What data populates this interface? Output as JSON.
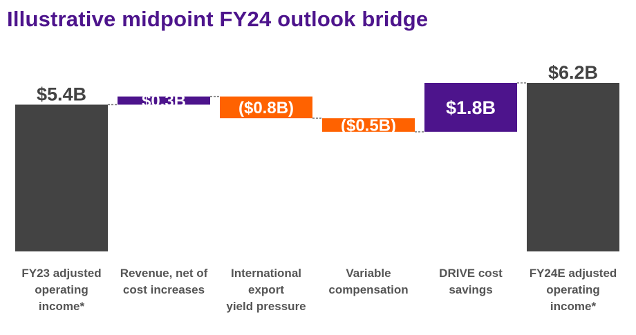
{
  "title": "Illustrative midpoint FY24 outlook bridge",
  "colors": {
    "total": "#434343",
    "increase": "#4d148c",
    "decrease": "#ff6200",
    "title": "#4d148c",
    "category_text": "#555555"
  },
  "chart_data": {
    "type": "waterfall",
    "title": "Illustrative midpoint FY24 outlook bridge",
    "unit": "$B",
    "categories": [
      [
        "FY23 adjusted",
        "operating",
        "income*"
      ],
      [
        "Revenue, net of",
        "cost increases"
      ],
      [
        "International",
        "export",
        "yield pressure"
      ],
      [
        "Variable",
        "compensation"
      ],
      [
        "DRIVE cost",
        "savings"
      ],
      [
        "FY24E adjusted",
        "operating",
        "income*"
      ]
    ],
    "steps": [
      {
        "kind": "total",
        "value": 5.4,
        "label": "$5.4B"
      },
      {
        "kind": "delta",
        "value": 0.3,
        "label": "$0.3B"
      },
      {
        "kind": "delta",
        "value": -0.8,
        "label": "($0.8B)"
      },
      {
        "kind": "delta",
        "value": -0.5,
        "label": "($0.5B)"
      },
      {
        "kind": "delta",
        "value": 1.8,
        "label": "$1.8B"
      },
      {
        "kind": "total",
        "value": 6.2,
        "label": "$6.2B"
      }
    ],
    "grid": false,
    "legend": "none"
  }
}
